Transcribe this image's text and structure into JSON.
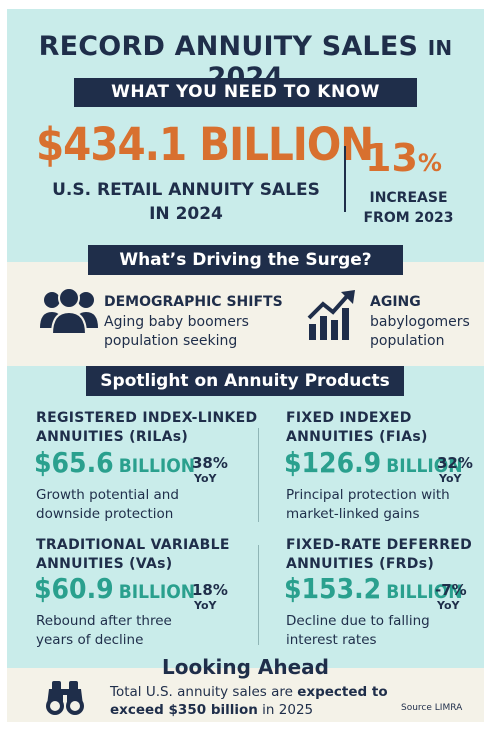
{
  "header": {
    "title_main": "RECORD ANNUITY SALES",
    "title_in": "IN",
    "title_year": "2024",
    "banner": "WHAT YOU NEED TO KNOW"
  },
  "headline": {
    "amount": "$434.1 BILLION",
    "amount_line1": "U.S. RETAIL ANNUITY SALES",
    "amount_line2": "IN 2024",
    "increase_value": "13",
    "increase_symbol": "%",
    "increase_line1": "INCREASE",
    "increase_line2": "FROM 2023"
  },
  "drivers": {
    "banner": "What’s Driving the Surge?",
    "items": [
      {
        "icon": "people-group-icon",
        "title": "DEMOGRAPHIC SHIFTS",
        "line1": "Aging baby boomers",
        "line2": "population seeking"
      },
      {
        "icon": "growth-chart-icon",
        "title": "AGING",
        "line1": "babylogomers",
        "line2": "population"
      }
    ]
  },
  "spotlight": {
    "banner": "Spotlight on Annuity Products",
    "products": [
      {
        "name1": "REGISTERED INDEX-LINKED",
        "name2": "ANNUITIES (RILAs)",
        "amount": "$65.6",
        "unit": "BILLION",
        "pct": "38%",
        "yoy": "YoY",
        "desc1": "Growth potential and",
        "desc2": "downside protection"
      },
      {
        "name1": "FIXED INDEXED",
        "name2": "ANNUITIES (FIAs)",
        "amount": "$126.9",
        "unit": "BILLION",
        "pct": "32%",
        "yoy": "YoY",
        "desc1": "Principal protection with",
        "desc2": "market-linked gains"
      },
      {
        "name1": "TRADITIONAL VARIABLE",
        "name2": "ANNUITIES (VAs)",
        "amount": "$60.9",
        "unit": "BILLION",
        "pct": "18%",
        "yoy": "YoY",
        "desc1": "Rebound after three",
        "desc2": "years of decline"
      },
      {
        "name1": "FIXED-RATE DEFERRED",
        "name2": "ANNUITIES (FRDs)",
        "amount": "$153.2",
        "unit": "BILLION",
        "pct": "-7%",
        "yoy": "YoY",
        "desc1": "Decline due to falling",
        "desc2": "interest rates"
      }
    ]
  },
  "outlook": {
    "title": "Looking Ahead",
    "icon": "binoculars-icon",
    "line1_a": "Total U.S. annuity sales are ",
    "line1_b": "expected to",
    "line2_a": "exceed $350 billion",
    "line2_b": " in 2025",
    "source": "Source LIMRA"
  },
  "colors": {
    "navy": "#1f2e4a",
    "orange": "#d8702f",
    "teal": "#2aa08e",
    "background": "#c9ecea",
    "band": "#f4f2e8"
  }
}
